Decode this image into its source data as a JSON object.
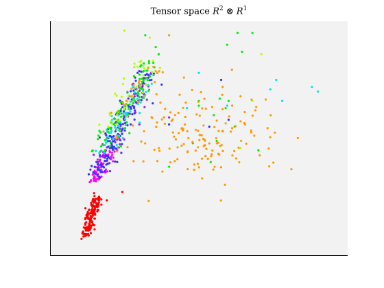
{
  "chart_data": {
    "type": "scatter",
    "title": "Tensor space R^2 ⊗ R^1",
    "title_parts": {
      "prefix": "Tensor space ",
      "r1": "R",
      "e1": "2",
      "op": " ⊗ ",
      "r2": "R",
      "e2": "1"
    },
    "xlabel": "",
    "ylabel": "",
    "xlim": [
      0,
      1
    ],
    "ylim": [
      0,
      1
    ],
    "grid": false,
    "legend": "none",
    "axis_ticks": false,
    "plot_background": "#f2f2f2",
    "axis_color": "#000000",
    "seed": 7,
    "clusters": [
      {
        "color": "#ff0000",
        "count": 150,
        "kind": "band",
        "x0": 0.118,
        "y0": 0.08,
        "x1": 0.158,
        "y1": 0.25,
        "spread": 0.009,
        "sparse": [
          [
            0.243,
            0.272
          ],
          [
            0.148,
            0.267
          ]
        ]
      },
      {
        "color": "#ff00ff",
        "count": 70,
        "kind": "band",
        "x0": 0.148,
        "y0": 0.32,
        "x1": 0.205,
        "y1": 0.46,
        "spread": 0.012,
        "sparse": [
          [
            0.16,
            0.41
          ],
          [
            0.233,
            0.5
          ]
        ]
      },
      {
        "color": "#3333ff",
        "count": 170,
        "kind": "band",
        "x0": 0.155,
        "y0": 0.34,
        "x1": 0.325,
        "y1": 0.78,
        "spread": 0.018,
        "sparse": [
          [
            0.285,
            0.62
          ],
          [
            0.345,
            0.65
          ],
          [
            0.4,
            0.56
          ],
          [
            0.6,
            0.58
          ],
          [
            0.535,
            0.55
          ],
          [
            0.575,
            0.75
          ],
          [
            0.375,
            0.73
          ],
          [
            0.32,
            0.77
          ]
        ]
      },
      {
        "color": "#8a2be2",
        "count": 40,
        "kind": "band",
        "x0": 0.17,
        "y0": 0.4,
        "x1": 0.33,
        "y1": 0.76,
        "spread": 0.016,
        "sparse": [
          [
            0.34,
            0.78
          ],
          [
            0.4,
            0.59
          ],
          [
            0.3,
            0.56
          ]
        ]
      },
      {
        "color": "#00e5ee",
        "count": 60,
        "kind": "band",
        "x0": 0.175,
        "y0": 0.45,
        "x1": 0.325,
        "y1": 0.75,
        "spread": 0.02,
        "sparse": [
          [
            0.88,
            0.72
          ],
          [
            0.9,
            0.7
          ],
          [
            0.76,
            0.75
          ],
          [
            0.74,
            0.71
          ],
          [
            0.78,
            0.66
          ],
          [
            0.595,
            0.64
          ],
          [
            0.46,
            0.63
          ],
          [
            0.5,
            0.78
          ],
          [
            0.3,
            0.73
          ]
        ]
      },
      {
        "color": "#00ee00",
        "count": 80,
        "kind": "band",
        "x0": 0.165,
        "y0": 0.44,
        "x1": 0.34,
        "y1": 0.82,
        "spread": 0.025,
        "sparse": [
          [
            0.32,
            0.94
          ],
          [
            0.355,
            0.89
          ],
          [
            0.365,
            0.86
          ],
          [
            0.315,
            0.82
          ],
          [
            0.595,
            0.9
          ],
          [
            0.63,
            0.95
          ],
          [
            0.645,
            0.87
          ],
          [
            0.68,
            0.95
          ],
          [
            0.5,
            0.66
          ],
          [
            0.59,
            0.63
          ],
          [
            0.57,
            0.67
          ],
          [
            0.56,
            0.49
          ],
          [
            0.4,
            0.38
          ],
          [
            0.54,
            0.4
          ],
          [
            0.6,
            0.66
          ],
          [
            0.55,
            0.6
          ],
          [
            0.5,
            0.64
          ],
          [
            0.62,
            0.55
          ],
          [
            0.7,
            0.45
          ],
          [
            0.48,
            0.48
          ]
        ]
      },
      {
        "color": "#b3ff00",
        "count": 40,
        "kind": "band",
        "x0": 0.2,
        "y0": 0.55,
        "x1": 0.33,
        "y1": 0.84,
        "spread": 0.025,
        "sparse": [
          [
            0.335,
            0.93
          ],
          [
            0.25,
            0.96
          ],
          [
            0.36,
            0.78
          ],
          [
            0.71,
            0.86
          ],
          [
            0.68,
            0.66
          ],
          [
            0.64,
            0.46
          ]
        ]
      },
      {
        "color": "#ff9900",
        "count": 150,
        "kind": "cloud",
        "cx": 0.5,
        "cy": 0.52,
        "rx": 0.13,
        "ry": 0.1,
        "extra_band": {
          "x0": 0.23,
          "y0": 0.62,
          "x1": 0.36,
          "y1": 0.8,
          "n": 20
        },
        "sparse": [
          [
            0.4,
            0.94
          ],
          [
            0.45,
            0.76
          ],
          [
            0.58,
            0.72
          ],
          [
            0.64,
            0.68
          ],
          [
            0.36,
            0.78
          ],
          [
            0.33,
            0.8
          ],
          [
            0.42,
            0.6
          ],
          [
            0.69,
            0.62
          ]
        ]
      }
    ]
  }
}
